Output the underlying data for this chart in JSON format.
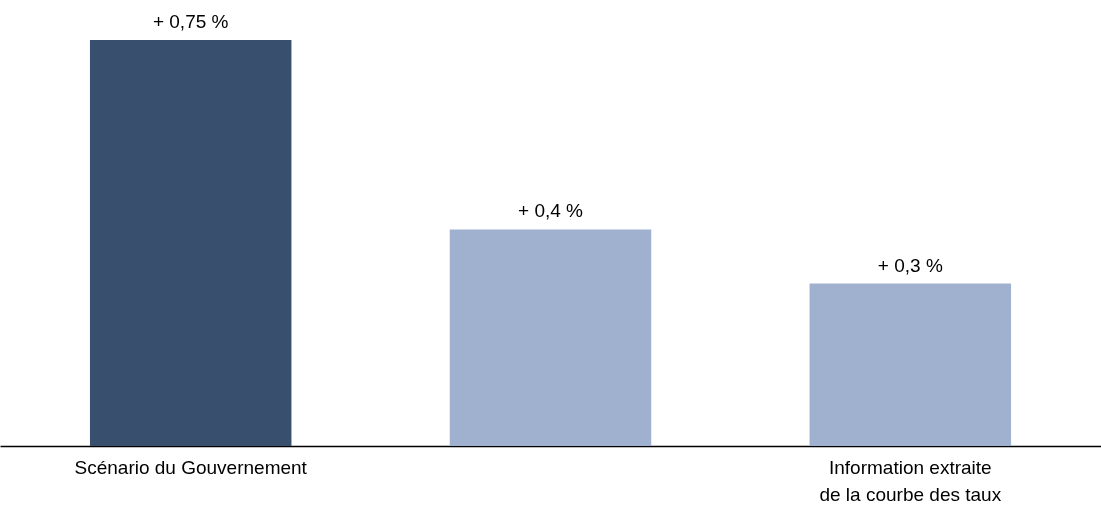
{
  "chart_data": {
    "type": "bar",
    "categories": [
      "Scénario du Gouvernement",
      null,
      "Information extraite\nde la courbe des taux"
    ],
    "values": [
      0.75,
      0.4,
      0.3
    ],
    "colors": [
      "#384f6d",
      "#9fb1cf",
      "#9fb1cf"
    ],
    "value_labels": [
      "+ 0,75 %",
      "+ 0,4 %",
      "+ 0,3 %"
    ],
    "grid": false
  }
}
